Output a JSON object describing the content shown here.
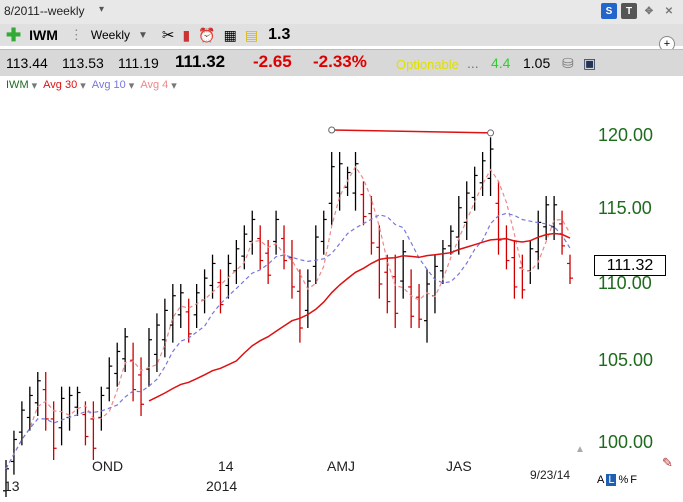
{
  "window": {
    "title": "8/2011--weekly",
    "title_caret": "▾",
    "right_buttons": [
      "S",
      "T"
    ]
  },
  "toolbar": {
    "symbol": "IWM",
    "period": "Weekly",
    "value": "1.3"
  },
  "quote": {
    "open": "113.44",
    "high": "113.53",
    "low": "111.19",
    "last": "111.32",
    "change": "-2.65",
    "change_pct": "-2.33%",
    "optionable": "Optionable",
    "ellipsis": "...",
    "val_green": "4.4",
    "val2": "1.05"
  },
  "legend": {
    "symbol": "IWM",
    "avg30": "Avg 30",
    "avg10": "Avg 10",
    "avg4": "Avg 4"
  },
  "colors": {
    "up": "#000000",
    "down": "#cc0000",
    "avg30": "#dd1111",
    "avg10": "#7777dd",
    "avg4": "#ee8888",
    "axis": "#1e6b1e"
  },
  "chart": {
    "y_labels": [
      "120.00",
      "115.00",
      "110.00",
      "105.00",
      "100.00"
    ],
    "x_labels": [
      "OND",
      "14",
      "AMJ",
      "JAS"
    ],
    "x_label_row2": [
      "13",
      "2014"
    ],
    "date": "9/23/14",
    "last_price": "111.32",
    "footer_tabs": [
      "A",
      "L",
      "%",
      "F"
    ]
  },
  "chart_data": {
    "type": "ohlc",
    "title": "",
    "ylabel": "",
    "ylim": [
      99,
      121.5
    ],
    "resistance_line": [
      121.5,
      121.3
    ],
    "series": [
      {
        "name": "IWM",
        "hl": [
          [
            96,
            99
          ],
          [
            98,
            101
          ],
          [
            100,
            103
          ],
          [
            101,
            104
          ],
          [
            102,
            105
          ],
          [
            101,
            105
          ],
          [
            99,
            103
          ],
          [
            100,
            104
          ],
          [
            101,
            104
          ],
          [
            102,
            104
          ],
          [
            100,
            103
          ],
          [
            99,
            103
          ],
          [
            101,
            104
          ],
          [
            103,
            106
          ],
          [
            104,
            107
          ],
          [
            105,
            108
          ],
          [
            103,
            107
          ],
          [
            102,
            106
          ],
          [
            104,
            108
          ],
          [
            105,
            109
          ],
          [
            106,
            110
          ],
          [
            107,
            111
          ],
          [
            108,
            111
          ],
          [
            107,
            110
          ],
          [
            108,
            111
          ],
          [
            109,
            112
          ],
          [
            110,
            113
          ],
          [
            109,
            112
          ],
          [
            110,
            113
          ],
          [
            111,
            114
          ],
          [
            112,
            115
          ],
          [
            113,
            116
          ],
          [
            112,
            115
          ],
          [
            111,
            114
          ],
          [
            113,
            116
          ],
          [
            112,
            115
          ],
          [
            110,
            114
          ],
          [
            107,
            112
          ],
          [
            108,
            112
          ],
          [
            111,
            115
          ],
          [
            113,
            116
          ],
          [
            115,
            120
          ],
          [
            116,
            120
          ],
          [
            117,
            119
          ],
          [
            116,
            120
          ],
          [
            115,
            118
          ],
          [
            113,
            117
          ],
          [
            110,
            115
          ],
          [
            109,
            113
          ],
          [
            108,
            113
          ],
          [
            110,
            114
          ],
          [
            108,
            112
          ],
          [
            108,
            111
          ],
          [
            107,
            112
          ],
          [
            109,
            113
          ],
          [
            111,
            114
          ],
          [
            113,
            115
          ],
          [
            113,
            117
          ],
          [
            114,
            118
          ],
          [
            116,
            119
          ],
          [
            117,
            120
          ],
          [
            117,
            121
          ],
          [
            113,
            118
          ],
          [
            112,
            115
          ],
          [
            110,
            114
          ],
          [
            110,
            113
          ],
          [
            111,
            114
          ],
          [
            112,
            116
          ],
          [
            114,
            117
          ],
          [
            114,
            117
          ],
          [
            113,
            116
          ],
          [
            111,
            113
          ]
        ]
      }
    ]
  }
}
